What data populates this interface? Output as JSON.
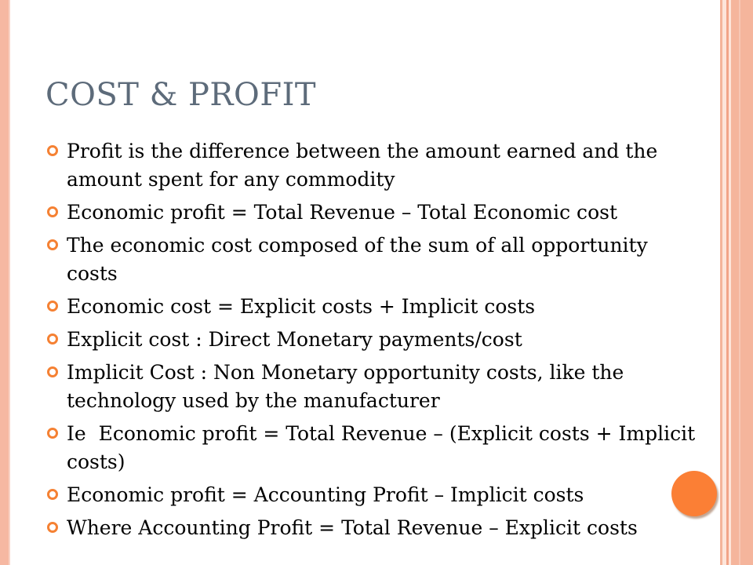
{
  "slide": {
    "title": "COST & PROFIT",
    "bullets": [
      "Profit is the difference between the amount earned and the amount spent for any commodity",
      "Economic profit = Total Revenue – Total Economic cost",
      "The economic cost composed of the sum of all opportunity costs",
      "Economic cost = Explicit costs + Implicit costs",
      "Explicit cost : Direct Monetary payments/cost",
      "Implicit Cost : Non Monetary opportunity costs, like the technology used by the manufacturer",
      "Ie  Economic profit = Total Revenue – (Explicit costs + Implicit costs)",
      "Economic profit = Accounting Profit – Implicit costs",
      "Where Accounting Profit = Total Revenue – Explicit costs"
    ],
    "bullet_icon": "hollow-circle-bullet-icon"
  },
  "colors": {
    "title": "#5d6b7a",
    "bullet_marker": "#f58133",
    "accent_circle": "#fb7f35",
    "border_stripe": "#f5b59c"
  }
}
